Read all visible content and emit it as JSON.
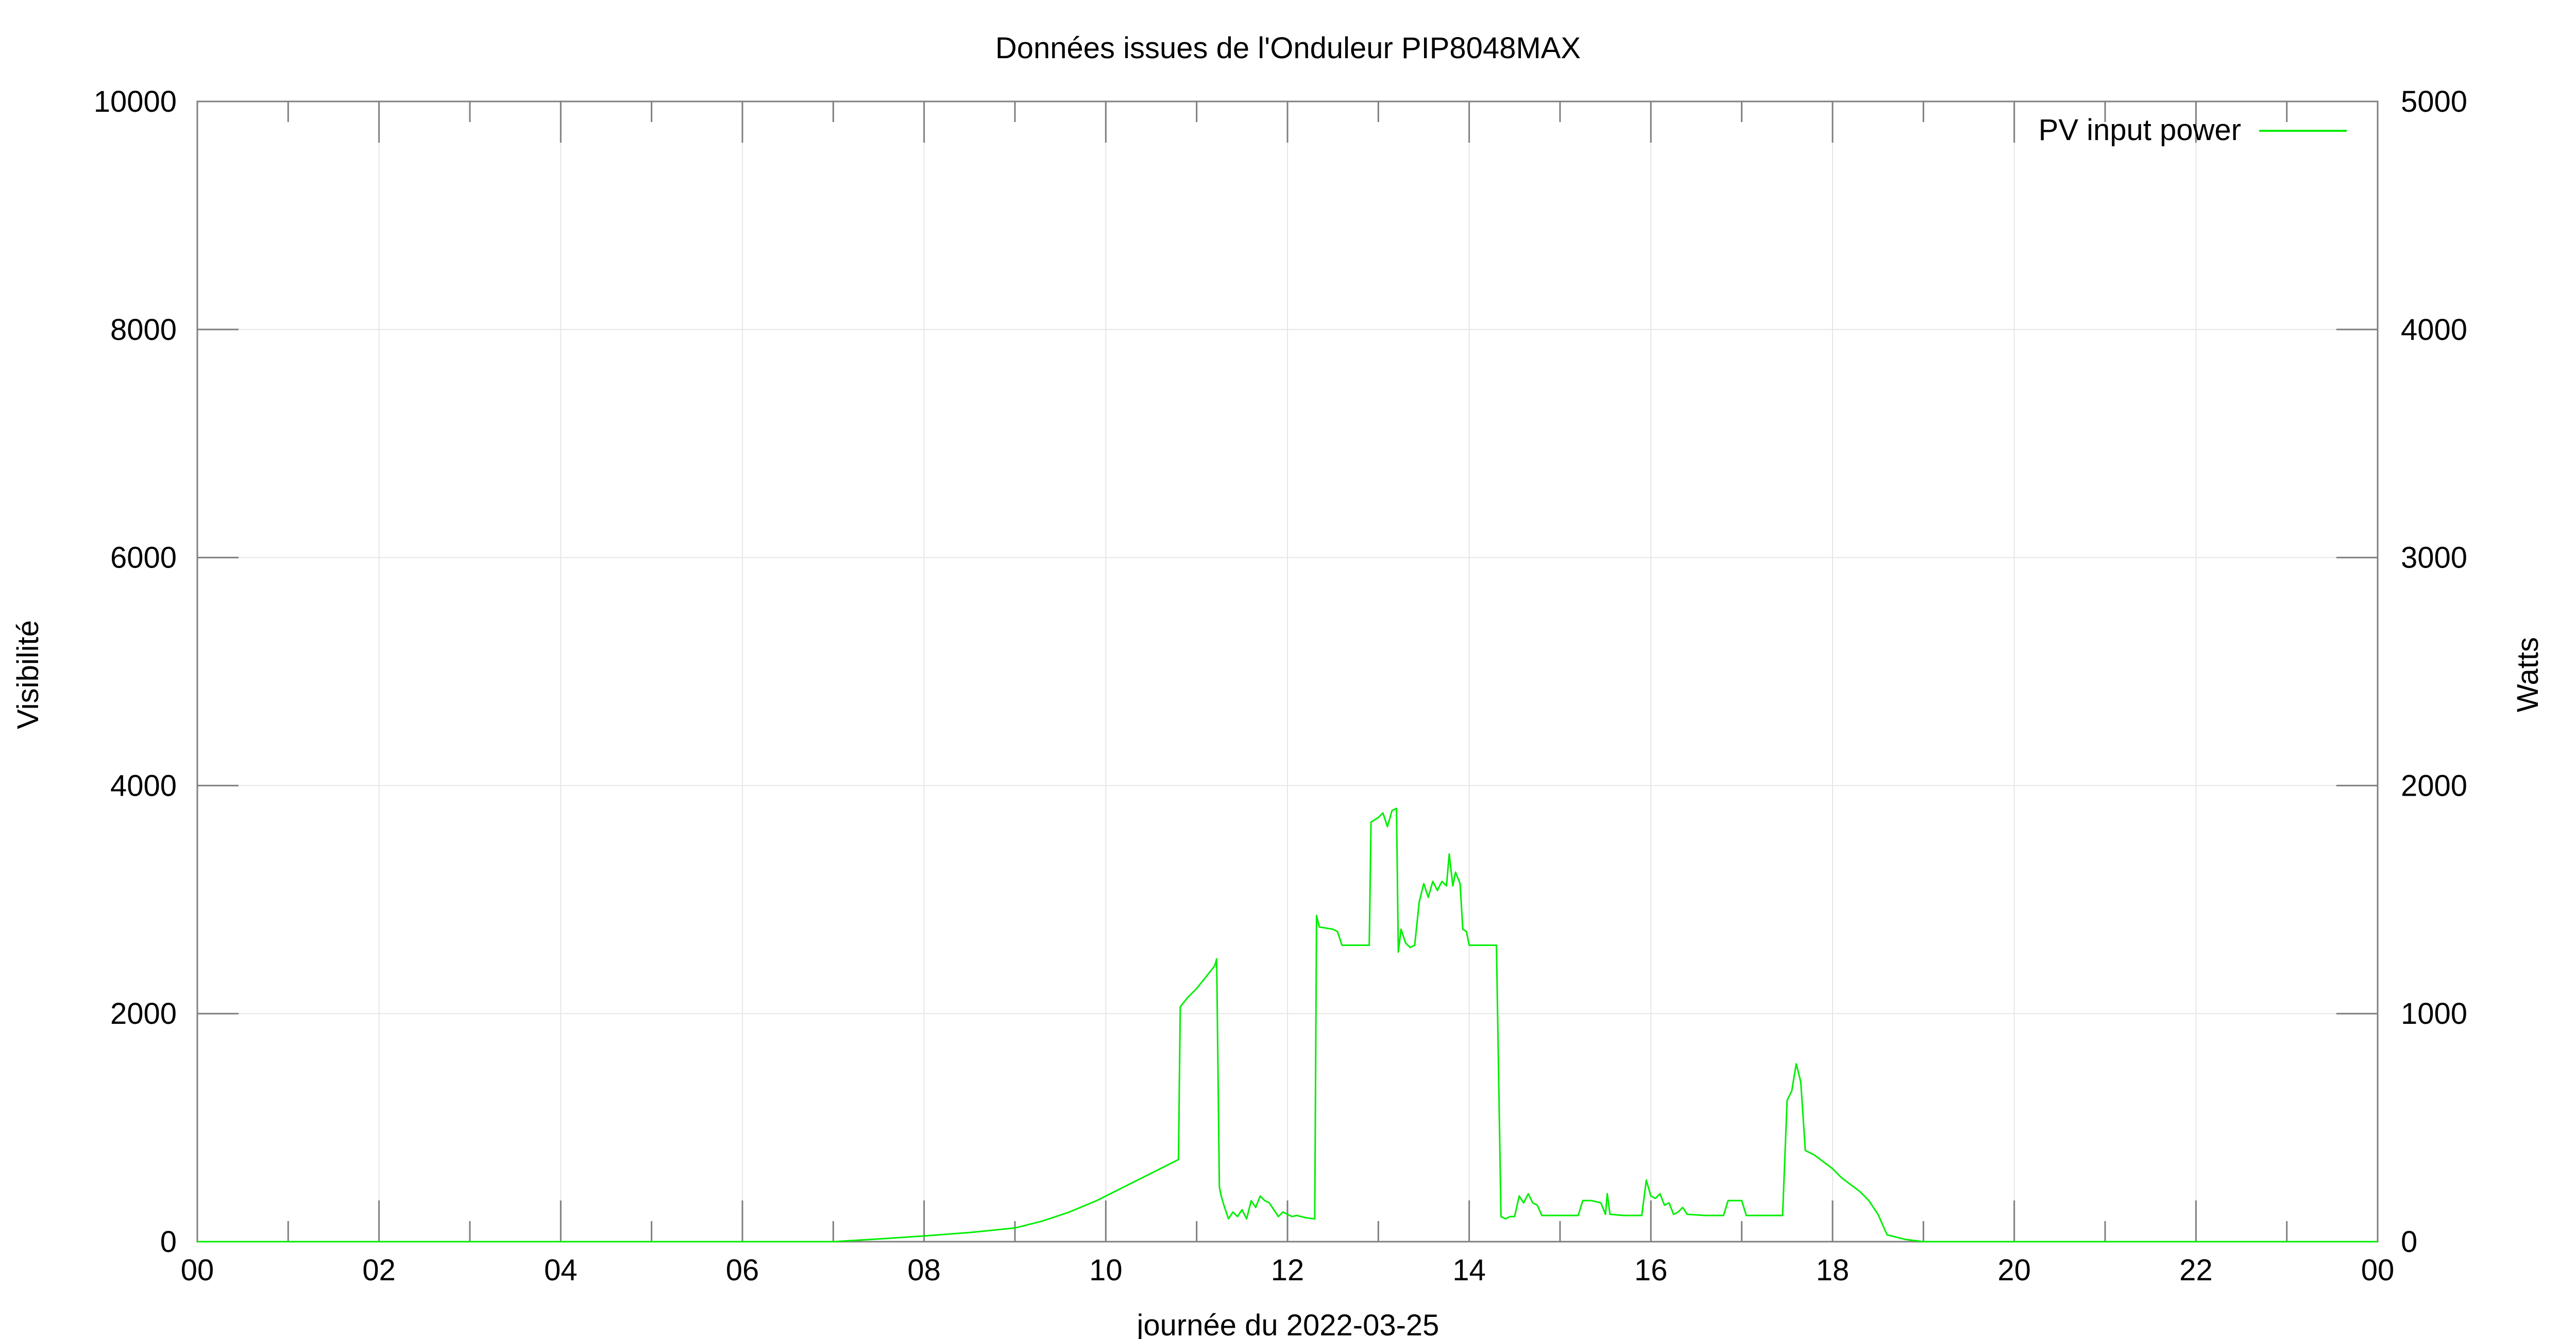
{
  "chart_data": {
    "type": "line",
    "title": "Données issues de l'Onduleur PIP8048MAX",
    "xlabel": "journée du 2022-03-25",
    "ylabel": "Visibilité",
    "y2label": "Watts",
    "x_ticks": [
      "00",
      "02",
      "04",
      "06",
      "08",
      "10",
      "12",
      "14",
      "16",
      "18",
      "20",
      "22",
      "00"
    ],
    "xlim": [
      0,
      24
    ],
    "ylim": [
      0,
      10000
    ],
    "y2lim": [
      0,
      5000
    ],
    "y_ticks": [
      0,
      2000,
      4000,
      6000,
      8000,
      10000
    ],
    "y2_ticks": [
      0,
      1000,
      2000,
      3000,
      4000,
      5000
    ],
    "grid": true,
    "legend": "top-right",
    "series": [
      {
        "name": "PV input power",
        "axis": "y2",
        "color": "#00ee00",
        "points": [
          [
            0,
            0
          ],
          [
            7.0,
            0
          ],
          [
            7.5,
            12
          ],
          [
            8.0,
            25
          ],
          [
            8.5,
            40
          ],
          [
            9.0,
            60
          ],
          [
            9.3,
            90
          ],
          [
            9.6,
            130
          ],
          [
            9.9,
            180
          ],
          [
            10.2,
            240
          ],
          [
            10.5,
            300
          ],
          [
            10.8,
            360
          ],
          [
            10.82,
            1030
          ],
          [
            10.9,
            1070
          ],
          [
            11.0,
            1110
          ],
          [
            11.1,
            1160
          ],
          [
            11.2,
            1210
          ],
          [
            11.22,
            1240
          ],
          [
            11.25,
            240
          ],
          [
            11.27,
            200
          ],
          [
            11.3,
            160
          ],
          [
            11.35,
            100
          ],
          [
            11.4,
            130
          ],
          [
            11.45,
            110
          ],
          [
            11.5,
            140
          ],
          [
            11.55,
            100
          ],
          [
            11.6,
            180
          ],
          [
            11.65,
            150
          ],
          [
            11.7,
            200
          ],
          [
            11.75,
            180
          ],
          [
            11.8,
            170
          ],
          [
            11.85,
            140
          ],
          [
            11.9,
            110
          ],
          [
            11.95,
            130
          ],
          [
            12.0,
            120
          ],
          [
            12.05,
            110
          ],
          [
            12.1,
            115
          ],
          [
            12.2,
            105
          ],
          [
            12.3,
            100
          ],
          [
            12.32,
            1430
          ],
          [
            12.35,
            1380
          ],
          [
            12.5,
            1370
          ],
          [
            12.55,
            1360
          ],
          [
            12.6,
            1300
          ],
          [
            12.75,
            1300
          ],
          [
            12.85,
            1300
          ],
          [
            12.9,
            1300
          ],
          [
            12.92,
            1840
          ],
          [
            13.0,
            1860
          ],
          [
            13.05,
            1880
          ],
          [
            13.1,
            1820
          ],
          [
            13.15,
            1890
          ],
          [
            13.2,
            1900
          ],
          [
            13.22,
            1270
          ],
          [
            13.25,
            1370
          ],
          [
            13.3,
            1310
          ],
          [
            13.35,
            1290
          ],
          [
            13.4,
            1300
          ],
          [
            13.45,
            1490
          ],
          [
            13.5,
            1570
          ],
          [
            13.55,
            1510
          ],
          [
            13.6,
            1580
          ],
          [
            13.65,
            1540
          ],
          [
            13.7,
            1580
          ],
          [
            13.75,
            1560
          ],
          [
            13.78,
            1700
          ],
          [
            13.82,
            1560
          ],
          [
            13.85,
            1620
          ],
          [
            13.9,
            1570
          ],
          [
            13.93,
            1370
          ],
          [
            13.97,
            1360
          ],
          [
            14.0,
            1300
          ],
          [
            14.1,
            1300
          ],
          [
            14.2,
            1300
          ],
          [
            14.3,
            1300
          ],
          [
            14.35,
            110
          ],
          [
            14.4,
            100
          ],
          [
            14.45,
            110
          ],
          [
            14.5,
            110
          ],
          [
            14.55,
            200
          ],
          [
            14.6,
            170
          ],
          [
            14.65,
            210
          ],
          [
            14.7,
            170
          ],
          [
            14.75,
            160
          ],
          [
            14.8,
            115
          ],
          [
            15.0,
            115
          ],
          [
            15.2,
            115
          ],
          [
            15.25,
            180
          ],
          [
            15.35,
            180
          ],
          [
            15.45,
            170
          ],
          [
            15.5,
            120
          ],
          [
            15.52,
            210
          ],
          [
            15.55,
            120
          ],
          [
            15.7,
            115
          ],
          [
            15.9,
            115
          ],
          [
            15.95,
            270
          ],
          [
            16.0,
            200
          ],
          [
            16.05,
            190
          ],
          [
            16.1,
            210
          ],
          [
            16.15,
            160
          ],
          [
            16.2,
            170
          ],
          [
            16.25,
            120
          ],
          [
            16.3,
            130
          ],
          [
            16.35,
            150
          ],
          [
            16.4,
            120
          ],
          [
            16.6,
            115
          ],
          [
            16.8,
            115
          ],
          [
            16.85,
            180
          ],
          [
            17.0,
            180
          ],
          [
            17.05,
            115
          ],
          [
            17.3,
            115
          ],
          [
            17.45,
            115
          ],
          [
            17.5,
            620
          ],
          [
            17.55,
            660
          ],
          [
            17.6,
            780
          ],
          [
            17.65,
            700
          ],
          [
            17.7,
            400
          ],
          [
            17.8,
            380
          ],
          [
            17.9,
            350
          ],
          [
            18.0,
            320
          ],
          [
            18.1,
            280
          ],
          [
            18.2,
            250
          ],
          [
            18.3,
            220
          ],
          [
            18.4,
            180
          ],
          [
            18.5,
            120
          ],
          [
            18.6,
            30
          ],
          [
            18.8,
            10
          ],
          [
            19.0,
            0
          ],
          [
            24.0,
            0
          ]
        ]
      }
    ]
  }
}
